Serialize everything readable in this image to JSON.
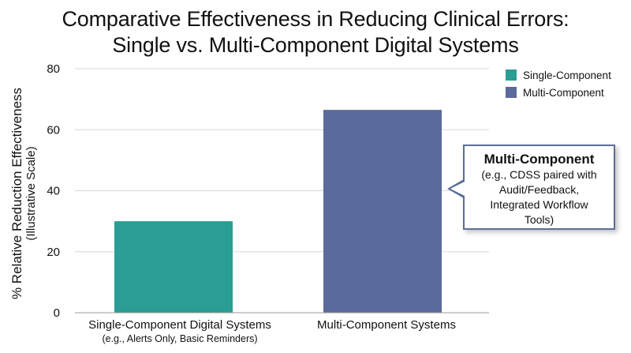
{
  "chart_data": {
    "type": "bar",
    "title": [
      "Comparative Effectiveness in Reducing Clinical Errors:",
      "Single vs. Multi-Component Digital Systems"
    ],
    "ylabel": "% Relative Reduction Effectiveness",
    "ylabel_sub": "(Illustrative Scale)",
    "ylim": [
      0,
      80
    ],
    "yticks": [
      0,
      20,
      40,
      60,
      80
    ],
    "grid": true,
    "categories": [
      {
        "main": "Single-Component Digital Systems",
        "sub": "(e.g., Alerts Only, Basic Reminders)"
      },
      {
        "main": "Multi-Component Systems",
        "sub": ""
      }
    ],
    "series": [
      {
        "name": "Single-Component",
        "color": "#2a9d94",
        "values": [
          30,
          null
        ]
      },
      {
        "name": "Multi-Component",
        "color": "#5a6a9b",
        "values": [
          null,
          66.5
        ]
      }
    ],
    "legend_position": "top-right",
    "annotation": {
      "title": "Multi-Component",
      "lines": [
        "(e.g., CDSS paired with",
        "Audit/Feedback,",
        "Integrated Workflow",
        "Tools)"
      ]
    }
  }
}
